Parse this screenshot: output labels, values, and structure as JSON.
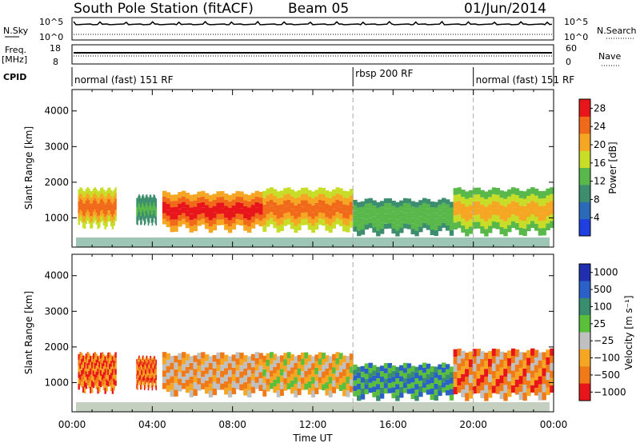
{
  "header": {
    "station": "South Pole Station (fitACF)",
    "beam": "Beam 05",
    "date": "01/Jun/2014"
  },
  "top_panels": {
    "nsky_label": "N.Sky",
    "nsky_ticks": [
      "10^5",
      "10^0"
    ],
    "nsearch_label": "N.Search",
    "nsearch_ticks": [
      "10^5",
      "10^0"
    ],
    "freq_label_1": "Freq.",
    "freq_label_2": "[MHz]",
    "freq_ticks": [
      "18",
      "8"
    ],
    "nave_label": "Nave",
    "nave_ticks": [
      "60",
      "0"
    ],
    "cpid_label": "CPID"
  },
  "chart_data": [
    {
      "type": "table",
      "title": "CPID",
      "segments": [
        {
          "label": "normal (fast) 151 RF",
          "start": "00:00",
          "end": "14:00"
        },
        {
          "label": "rbsp 200 RF",
          "start": "14:00",
          "end": "20:00"
        },
        {
          "label": "normal (fast) 151 RF",
          "start": "20:00",
          "end": "24:00"
        }
      ]
    },
    {
      "type": "heatmap",
      "xlabel": "Time UT",
      "ylabel": "Slant Range [km]",
      "xlim": [
        "00:00",
        "24:00"
      ],
      "ylim": [
        180,
        4600
      ],
      "x_ticks": [
        "00:00",
        "04:00",
        "08:00",
        "12:00",
        "16:00",
        "20:00",
        "00:00"
      ],
      "y_ticks": [
        1000,
        2000,
        3000,
        4000
      ],
      "colorbar_label": "Power [dB]",
      "colorbar_ticks": [
        4,
        8,
        12,
        16,
        20,
        24,
        28
      ],
      "colorbar_range": [
        0,
        30
      ],
      "colors": [
        "#1f3fe0",
        "#2a6ab8",
        "#3d8e6e",
        "#58b84a",
        "#c8dd28",
        "#f5a623",
        "#f06a1a",
        "#e8161a"
      ],
      "cpid_boundaries_hours": [
        14,
        20
      ],
      "echo_bands": [
        {
          "start_h": 0.3,
          "end_h": 2.2,
          "lo_km": 800,
          "hi_km": 1800,
          "level": 0.85
        },
        {
          "start_h": 3.2,
          "end_h": 4.2,
          "lo_km": 900,
          "hi_km": 1600,
          "level": 0.4
        },
        {
          "start_h": 4.5,
          "end_h": 9.5,
          "lo_km": 700,
          "hi_km": 1700,
          "level": 0.95
        },
        {
          "start_h": 9.5,
          "end_h": 14.0,
          "lo_km": 700,
          "hi_km": 1800,
          "level": 0.85
        },
        {
          "start_h": 14.0,
          "end_h": 19.0,
          "lo_km": 600,
          "hi_km": 1500,
          "level": 0.5
        },
        {
          "start_h": 19.0,
          "end_h": 24.0,
          "lo_km": 600,
          "hi_km": 1800,
          "level": 0.7
        }
      ]
    },
    {
      "type": "heatmap",
      "xlabel": "Time UT",
      "ylabel": "Slant Range [km]",
      "xlim": [
        "00:00",
        "24:00"
      ],
      "ylim": [
        180,
        4600
      ],
      "x_ticks": [
        "00:00",
        "04:00",
        "08:00",
        "12:00",
        "16:00",
        "20:00",
        "00:00"
      ],
      "y_ticks": [
        1000,
        2000,
        3000,
        4000
      ],
      "colorbar_label": "Velocity [m s⁻¹]",
      "colorbar_ticks": [
        "1000",
        "500",
        "100",
        "25",
        "−25",
        "−100",
        "−500",
        "−1000"
      ],
      "colors": [
        "#1f2fb0",
        "#2a60c8",
        "#3a8e70",
        "#5abf3a",
        "#c0c0c0",
        "#f5a623",
        "#f07a18",
        "#e8161a"
      ],
      "cpid_boundaries_hours": [
        14,
        20
      ],
      "echo_bands": [
        {
          "start_h": 0.3,
          "end_h": 2.2,
          "lo_km": 800,
          "hi_km": 1800,
          "level": 0.2
        },
        {
          "start_h": 3.2,
          "end_h": 4.2,
          "lo_km": 900,
          "hi_km": 1700,
          "level": 0.2
        },
        {
          "start_h": 4.5,
          "end_h": 9.5,
          "lo_km": 700,
          "hi_km": 1800,
          "level": 0.3
        },
        {
          "start_h": 9.5,
          "end_h": 14.0,
          "lo_km": 700,
          "hi_km": 1800,
          "level": 0.35
        },
        {
          "start_h": 14.0,
          "end_h": 19.0,
          "lo_km": 600,
          "hi_km": 1500,
          "level": 0.7
        },
        {
          "start_h": 19.0,
          "end_h": 24.0,
          "lo_km": 600,
          "hi_km": 1900,
          "level": 0.25
        }
      ]
    }
  ]
}
